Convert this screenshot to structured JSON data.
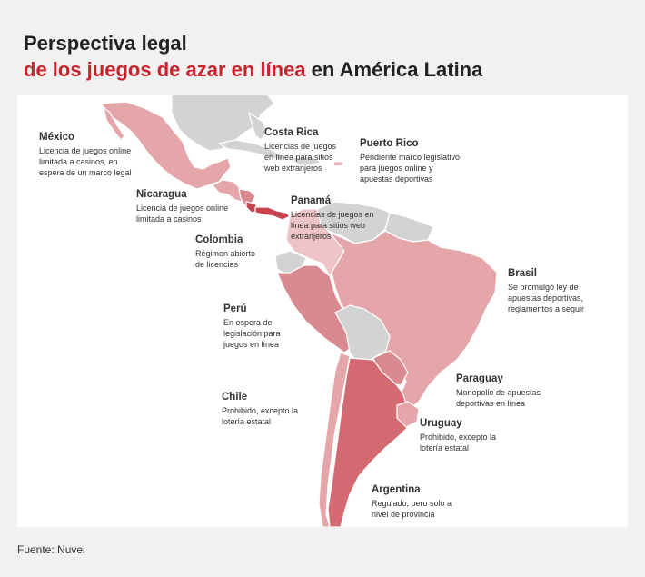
{
  "header": {
    "title_line1": "Perspectiva legal",
    "title_highlight": "de los juegos de azar en línea",
    "title_rest": " en América Latina"
  },
  "colors": {
    "accent_red": "#c8232c",
    "licensed_pink": "#e5a6aa",
    "regulated_dark": "#d36a72",
    "no_data_grey": "#d3d3d3"
  },
  "countries": {
    "mexico": {
      "name": "México",
      "desc": "Licencia de juegos online\nlimitada a casinos, en\nespera de un marco legal"
    },
    "costa_rica": {
      "name": "Costa Rica",
      "desc": "Licencias de juegos\nen línea para sitios\nweb extranjeros"
    },
    "puerto_rico": {
      "name": "Puerto Rico",
      "desc": "Pendiente marco legislativo\npara juegos online y\napuestas deportivas"
    },
    "nicaragua": {
      "name": "Nicaragua",
      "desc": "Licencia de juegos online\nlimitada a casinos"
    },
    "panama": {
      "name": "Panamá",
      "desc": "Licencias de juegos en\nlínea para sitios web\nextranjeros"
    },
    "colombia": {
      "name": "Colombia",
      "desc": "Régimen abierto\nde licencias"
    },
    "brasil": {
      "name": "Brasil",
      "desc": "Se promulgó ley de\napuestas deportivas,\nreglamentos a seguir"
    },
    "peru": {
      "name": "Perú",
      "desc": "En espera de\nlegislación para\njuegos en línea"
    },
    "paraguay": {
      "name": "Paraguay",
      "desc": "Monopolio de apuestas\ndeportivas en línea"
    },
    "chile": {
      "name": "Chile",
      "desc": "Prohibido, excepto la\nlotería estatal"
    },
    "uruguay": {
      "name": "Uruguay",
      "desc": "Prohibido, excepto la\nlotería estatal"
    },
    "argentina": {
      "name": "Argentina",
      "desc": "Regulado, pero solo a\nnivel de provincia"
    }
  },
  "footer": {
    "source": "Fuente: Nuvei"
  }
}
